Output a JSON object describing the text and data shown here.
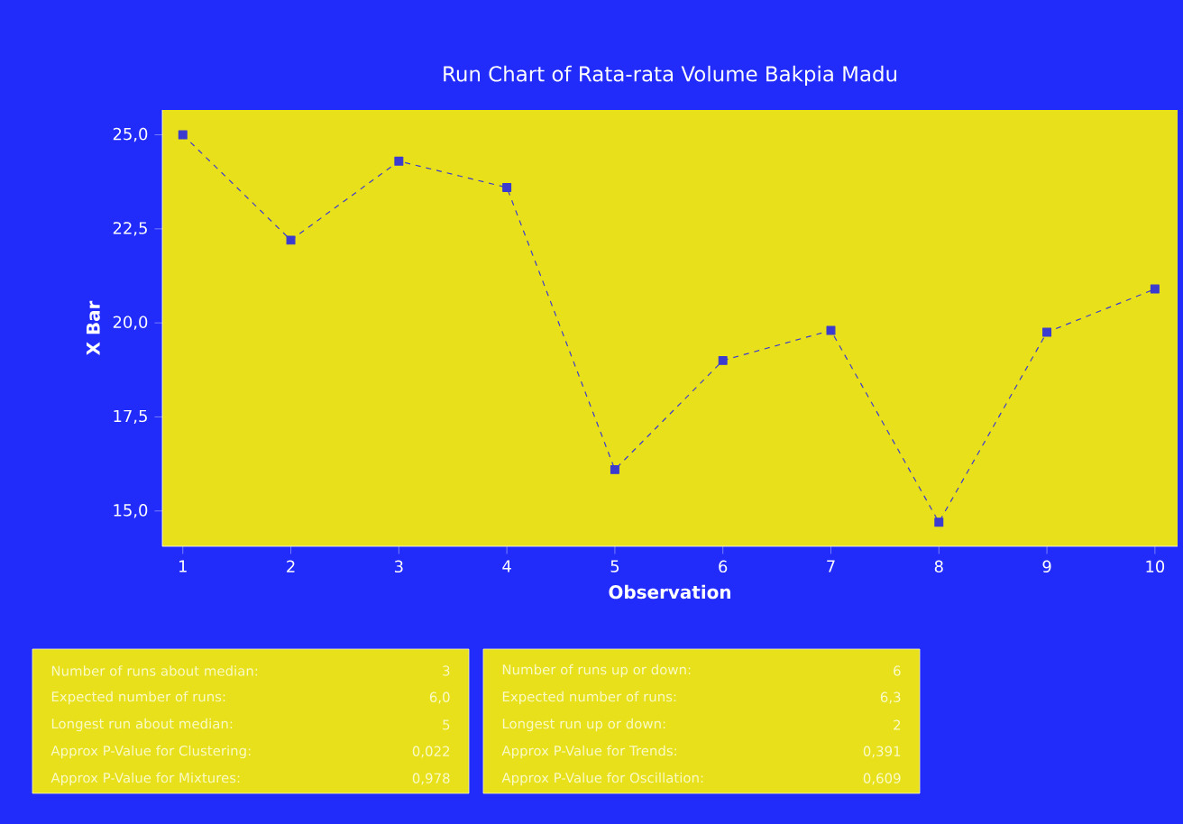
{
  "chart_data": {
    "type": "line",
    "title": "Run Chart of Rata-rata Volume Bakpia Madu",
    "xlabel": "Observation",
    "ylabel": "X Bar",
    "x": [
      1,
      2,
      3,
      4,
      5,
      6,
      7,
      8,
      9,
      10
    ],
    "series": [
      {
        "color": "#3b3bd0",
        "values": [
          25.0,
          22.2,
          24.3,
          23.6,
          16.1,
          19.0,
          19.8,
          14.7,
          19.75,
          20.9
        ]
      }
    ],
    "xlim": [
      0.81,
      10.21
    ],
    "ylim": [
      14.06,
      25.66
    ],
    "xticks": [
      1,
      2,
      3,
      4,
      5,
      6,
      7,
      8,
      9,
      10
    ],
    "yticks": [
      {
        "value": 15,
        "label": "15,0"
      },
      {
        "value": 17.5,
        "label": "17,5"
      },
      {
        "value": 20,
        "label": "20,0"
      },
      {
        "value": 22.5,
        "label": "22,5"
      },
      {
        "value": 25,
        "label": "25,0"
      }
    ],
    "marker": "square",
    "line_style": "dashed",
    "grid": false,
    "annotations": [
      "Number of runs about median:",
      "3",
      "Expected number of runs:",
      "6,0",
      "Longest run about median:",
      "5",
      "Approx P-Value for Clustering:",
      "0,022",
      "Approx P-Value for Mixtures:",
      "0,978",
      "Number of runs up or down:",
      "6",
      "Expected number of runs:",
      "6,3",
      "Longest run up or down:",
      "2",
      "Approx P-Value for Trends:",
      "0,391",
      "Approx P-Value for Oscillation:",
      "0,609"
    ]
  }
}
